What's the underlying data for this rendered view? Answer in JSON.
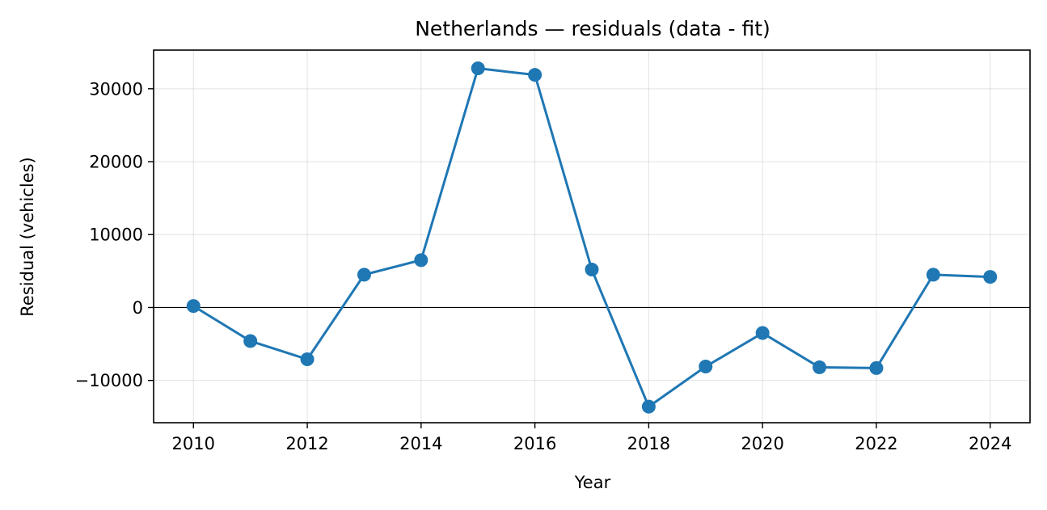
{
  "chart_data": {
    "type": "line",
    "title": "Netherlands — residuals (data - fit)",
    "xlabel": "Year",
    "ylabel": "Residual (vehicles)",
    "xlim": [
      2009.3,
      2024.7
    ],
    "ylim": [
      -15800,
      35300
    ],
    "x_ticks": [
      2010,
      2012,
      2014,
      2016,
      2018,
      2020,
      2022,
      2024
    ],
    "y_ticks": [
      -10000,
      0,
      10000,
      20000,
      30000
    ],
    "x_tick_labels": [
      "2010",
      "2012",
      "2014",
      "2016",
      "2018",
      "2020",
      "2022",
      "2024"
    ],
    "y_tick_labels": [
      "−10000",
      "0",
      "10000",
      "20000",
      "30000"
    ],
    "grid": true,
    "zero_line": true,
    "series": [
      {
        "color": "#1f77b4",
        "marker": "circle",
        "x": [
          2010,
          2011,
          2012,
          2013,
          2014,
          2015,
          2016,
          2017,
          2018,
          2019,
          2020,
          2021,
          2022,
          2023,
          2024
        ],
        "y": [
          200,
          -4600,
          -7100,
          4500,
          6500,
          32800,
          31900,
          5200,
          -13600,
          -8100,
          -3500,
          -8200,
          -8300,
          4500,
          4200
        ]
      }
    ]
  }
}
